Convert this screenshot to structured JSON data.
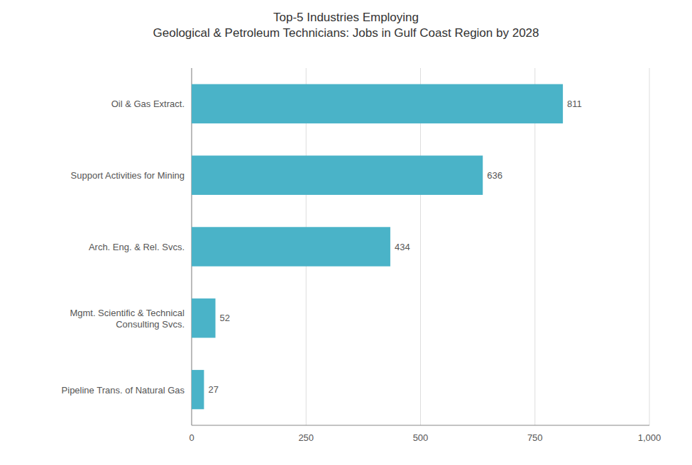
{
  "chart_data": {
    "type": "bar",
    "orientation": "horizontal",
    "title": "Top-5 Industries Employing\nGeological & Petroleum Technicians: Jobs in Gulf Coast Region by 2028",
    "categories": [
      "Pipeline Trans. of Natural Gas",
      "Mgmt. Scientific & Technical\nConsulting Svcs.",
      "Arch. Eng. & Rel. Svcs.",
      "Support Activities for Mining",
      "Oil & Gas Extract."
    ],
    "values": [
      27,
      52,
      434,
      636,
      811
    ],
    "color": "#4ab3c8",
    "xlim": [
      0,
      1000
    ],
    "xticks": [
      0,
      250,
      500,
      750,
      {
        "value": 1000,
        "label": "1,000"
      }
    ],
    "grid": true,
    "data_labels": true
  }
}
